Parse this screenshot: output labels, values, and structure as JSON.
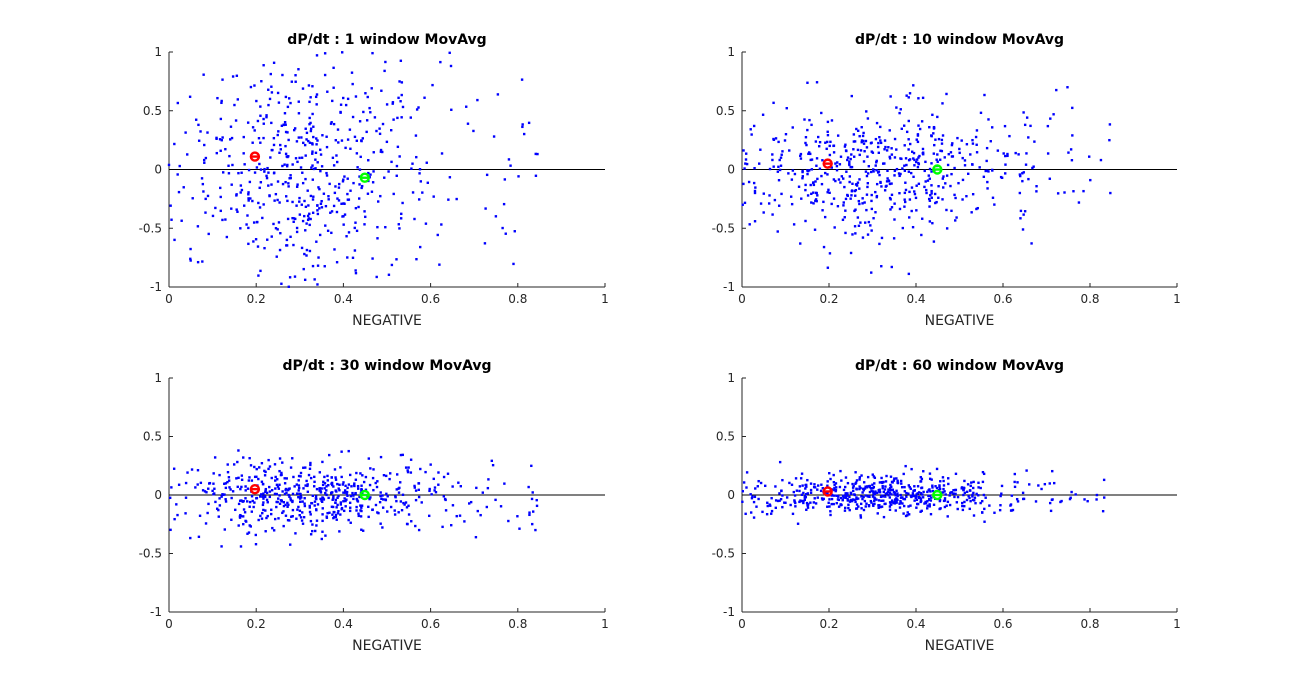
{
  "figure": {
    "background": "#ffffff",
    "axis_color": "#262626",
    "zero_line_color": "#000000",
    "point_color": "#0000ff",
    "marker_negative_color": "#ff0000",
    "marker_positive_color": "#00ff00"
  },
  "chart_data": [
    {
      "type": "scatter",
      "title": "dP/dt : 1 window MovAvg",
      "xlabel": "NEGATIVE",
      "ylabel": "",
      "xlim": [
        0,
        1
      ],
      "ylim": [
        -1,
        1
      ],
      "xticks": [
        "0",
        "0.2",
        "0.4",
        "0.6",
        "0.8",
        "1"
      ],
      "yticks": [
        "-1",
        "-0.5",
        "0",
        "0.5",
        "1"
      ],
      "spread": 0.5,
      "seed": 11,
      "zero_line": 0,
      "markers": [
        {
          "name": "red",
          "x": 0.197,
          "y": 0.11
        },
        {
          "name": "green",
          "x": 0.449,
          "y": -0.07
        }
      ]
    },
    {
      "type": "scatter",
      "title": "dP/dt : 10 window MovAvg",
      "xlabel": "NEGATIVE",
      "ylabel": "",
      "xlim": [
        0,
        1
      ],
      "ylim": [
        -1,
        1
      ],
      "xticks": [
        "0",
        "0.2",
        "0.4",
        "0.6",
        "0.8",
        "1"
      ],
      "yticks": [
        "-1",
        "-0.5",
        "0",
        "0.5",
        "1"
      ],
      "spread": 0.28,
      "seed": 23,
      "zero_line": 0,
      "markers": [
        {
          "name": "red",
          "x": 0.197,
          "y": 0.05
        },
        {
          "name": "green",
          "x": 0.449,
          "y": 0.0
        }
      ]
    },
    {
      "type": "scatter",
      "title": "dP/dt : 30 window MovAvg",
      "xlabel": "NEGATIVE",
      "ylabel": "",
      "xlim": [
        0,
        1
      ],
      "ylim": [
        -1,
        1
      ],
      "xticks": [
        "0",
        "0.2",
        "0.4",
        "0.6",
        "0.8",
        "1"
      ],
      "yticks": [
        "-1",
        "-0.5",
        "0",
        "0.5",
        "1"
      ],
      "spread": 0.15,
      "seed": 37,
      "zero_line": 0,
      "markers": [
        {
          "name": "red",
          "x": 0.197,
          "y": 0.05
        },
        {
          "name": "green",
          "x": 0.449,
          "y": 0.0
        }
      ]
    },
    {
      "type": "scatter",
      "title": "dP/dt : 60 window MovAvg",
      "xlabel": "NEGATIVE",
      "ylabel": "",
      "xlim": [
        0,
        1
      ],
      "ylim": [
        -1,
        1
      ],
      "xticks": [
        "0",
        "0.2",
        "0.4",
        "0.6",
        "0.8",
        "1"
      ],
      "yticks": [
        "-1",
        "-0.5",
        "0",
        "0.5",
        "1"
      ],
      "spread": 0.09,
      "seed": 53,
      "zero_line": 0,
      "markers": [
        {
          "name": "red",
          "x": 0.197,
          "y": 0.03
        },
        {
          "name": "green",
          "x": 0.449,
          "y": 0.0
        }
      ]
    }
  ]
}
